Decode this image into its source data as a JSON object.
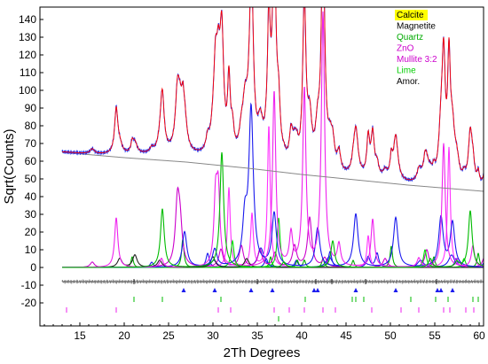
{
  "chart_data": {
    "type": "line",
    "xlabel": "2Th Degrees",
    "ylabel": "Sqrt(Counts)",
    "xlim": [
      10.5,
      60.5
    ],
    "ylim": [
      -33,
      147
    ],
    "xticks": [
      15,
      20,
      25,
      30,
      35,
      40,
      45,
      50,
      55,
      60
    ],
    "yticks": [
      140,
      130,
      120,
      110,
      100,
      90,
      80,
      70,
      60,
      50,
      40,
      30,
      20,
      10,
      0,
      -10,
      -20
    ],
    "grid": false,
    "legend_position": "top-right",
    "legend": [
      {
        "label": "Calcite",
        "color": "#000000",
        "highlight": "#ffff00"
      },
      {
        "label": "Magnetite",
        "color": "#000000"
      },
      {
        "label": "Quartz",
        "color": "#00aa00"
      },
      {
        "label": "ZnO",
        "color": "#cc00cc"
      },
      {
        "label": "Mullite 3:2",
        "color": "#cc00cc"
      },
      {
        "label": "Lime",
        "color": "#00cc00"
      },
      {
        "label": "Amor.",
        "color": "#000000"
      }
    ],
    "x_range": [
      13,
      60.5
    ],
    "background": {
      "x": [
        13,
        20,
        27,
        34,
        40,
        46,
        52,
        60.5
      ],
      "y": [
        65,
        62,
        59.5,
        56,
        52.5,
        49.5,
        46.5,
        43
      ]
    },
    "amorphous_hump": {
      "center": 26.5,
      "width": 7,
      "height": 3
    },
    "observed_color": "#2233ee",
    "calculated_color": "#ff0000",
    "background_color": "#888888",
    "difference_color": "#777777",
    "difference_offset": -8,
    "series": [
      {
        "key": "calcite",
        "color": "#1a1aee",
        "width": 0.22,
        "peaks": [
          [
            23.1,
            3
          ],
          [
            29.4,
            8
          ],
          [
            36.0,
            5
          ],
          [
            39.4,
            4
          ],
          [
            43.2,
            9
          ],
          [
            47.5,
            6
          ],
          [
            48.5,
            8
          ],
          [
            57.4,
            5
          ],
          [
            60.7,
            5
          ]
        ]
      },
      {
        "key": "magnetite",
        "color": "#1a1aee",
        "width": 0.4,
        "peaks": [
          [
            30.1,
            4
          ],
          [
            35.4,
            11
          ],
          [
            43.1,
            6
          ],
          [
            53.4,
            4
          ],
          [
            56.9,
            7
          ]
        ]
      },
      {
        "key": "quartz",
        "color": "#00aa00",
        "width": 0.16,
        "peaks": [
          [
            20.9,
            6
          ],
          [
            26.6,
            16
          ],
          [
            36.5,
            6
          ],
          [
            39.5,
            4
          ],
          [
            40.3,
            4
          ],
          [
            42.4,
            5
          ],
          [
            45.8,
            4
          ],
          [
            50.1,
            12
          ],
          [
            54.9,
            6
          ],
          [
            59.9,
            8
          ]
        ]
      },
      {
        "key": "zno",
        "color": "#ff33ff",
        "width": 0.18,
        "peaks": [
          [
            31.8,
            45
          ],
          [
            34.4,
            30
          ],
          [
            36.3,
            80
          ],
          [
            47.5,
            18
          ],
          [
            56.6,
            68
          ]
        ]
      },
      {
        "key": "mullite",
        "color": "#cc00cc",
        "width": 0.28,
        "peaks": [
          [
            16.4,
            3
          ],
          [
            26.0,
            35
          ],
          [
            26.3,
            20
          ],
          [
            30.9,
            10
          ],
          [
            33.2,
            12
          ],
          [
            35.3,
            10
          ],
          [
            37.0,
            8
          ],
          [
            39.2,
            12
          ],
          [
            40.9,
            28
          ],
          [
            42.6,
            5
          ],
          [
            49.4,
            5
          ],
          [
            54.1,
            10
          ],
          [
            57.6,
            5
          ],
          [
            60.7,
            8
          ]
        ]
      },
      {
        "key": "lime",
        "color": "#00dd00",
        "width": 0.2,
        "peaks": [
          [
            32.2,
            15
          ],
          [
            37.4,
            28
          ],
          [
            53.9,
            10
          ],
          [
            58.3,
            5
          ]
        ]
      },
      {
        "key": "amor",
        "color": "#222222",
        "width": 0.3,
        "peaks": [
          [
            19.5,
            5
          ],
          [
            21.2,
            7
          ],
          [
            24.0,
            4
          ],
          [
            30.0,
            6
          ],
          [
            33.8,
            5
          ]
        ]
      },
      {
        "key": "phase_blue",
        "color": "#1a1aee",
        "width": 0.3,
        "peaks": [
          [
            26.8,
            20
          ],
          [
            30.2,
            10
          ],
          [
            33.6,
            25
          ],
          [
            34.3,
            88
          ],
          [
            36.9,
            30
          ],
          [
            41.8,
            22
          ],
          [
            46.1,
            30
          ],
          [
            50.6,
            28
          ],
          [
            55.7,
            28
          ],
          [
            57.0,
            25
          ]
        ]
      },
      {
        "key": "phase_magenta",
        "color": "#ee22ee",
        "width": 0.22,
        "peaks": [
          [
            19.1,
            28
          ],
          [
            24.2,
            5
          ],
          [
            30.3,
            37
          ],
          [
            30.6,
            40
          ],
          [
            36.9,
            99
          ],
          [
            38.8,
            18
          ],
          [
            40.3,
            100
          ],
          [
            42.4,
            143
          ],
          [
            44.2,
            12
          ],
          [
            48.0,
            27
          ],
          [
            53.2,
            5
          ],
          [
            56.0,
            70
          ],
          [
            59.3,
            12
          ]
        ]
      },
      {
        "key": "phase_green",
        "color": "#00bb00",
        "width": 0.25,
        "peaks": [
          [
            24.3,
            33
          ],
          [
            31.0,
            65
          ],
          [
            38.0,
            3
          ],
          [
            43.5,
            15
          ],
          [
            54.5,
            5
          ],
          [
            57.5,
            3
          ],
          [
            59.0,
            32
          ]
        ]
      }
    ],
    "tick_rows": [
      {
        "y": -8,
        "color": "#222222",
        "marker": "bar",
        "x": [
          21.1,
          35.0,
          41.6,
          43.4,
          47.2,
          55.2
        ]
      },
      {
        "y": -13,
        "color": "#1a1aee",
        "marker": "triangle",
        "x": [
          26.7,
          30.2,
          34.3,
          36.7,
          41.4,
          41.8,
          46.1,
          50.6,
          55.3,
          55.7,
          57.0
        ]
      },
      {
        "y": -18,
        "color": "#00bb00",
        "marker": "bar",
        "x": [
          21.1,
          24.3,
          30.9,
          40.4,
          45.7,
          46.1,
          47.0,
          52.3,
          55.1,
          56.5,
          59.3,
          59.9
        ]
      },
      {
        "y": -24,
        "color": "#ee22ee",
        "marker": "bar",
        "x": [
          13.5,
          19.1,
          30.6,
          32.0,
          36.9,
          38.6,
          40.3,
          42.4,
          43.8,
          47.9,
          51.2,
          53.2,
          56.0,
          56.7,
          58.5,
          59.4
        ]
      },
      {
        "y": -29,
        "color": "#00bb00",
        "marker": "bar",
        "x": [
          37.4
        ]
      }
    ]
  }
}
